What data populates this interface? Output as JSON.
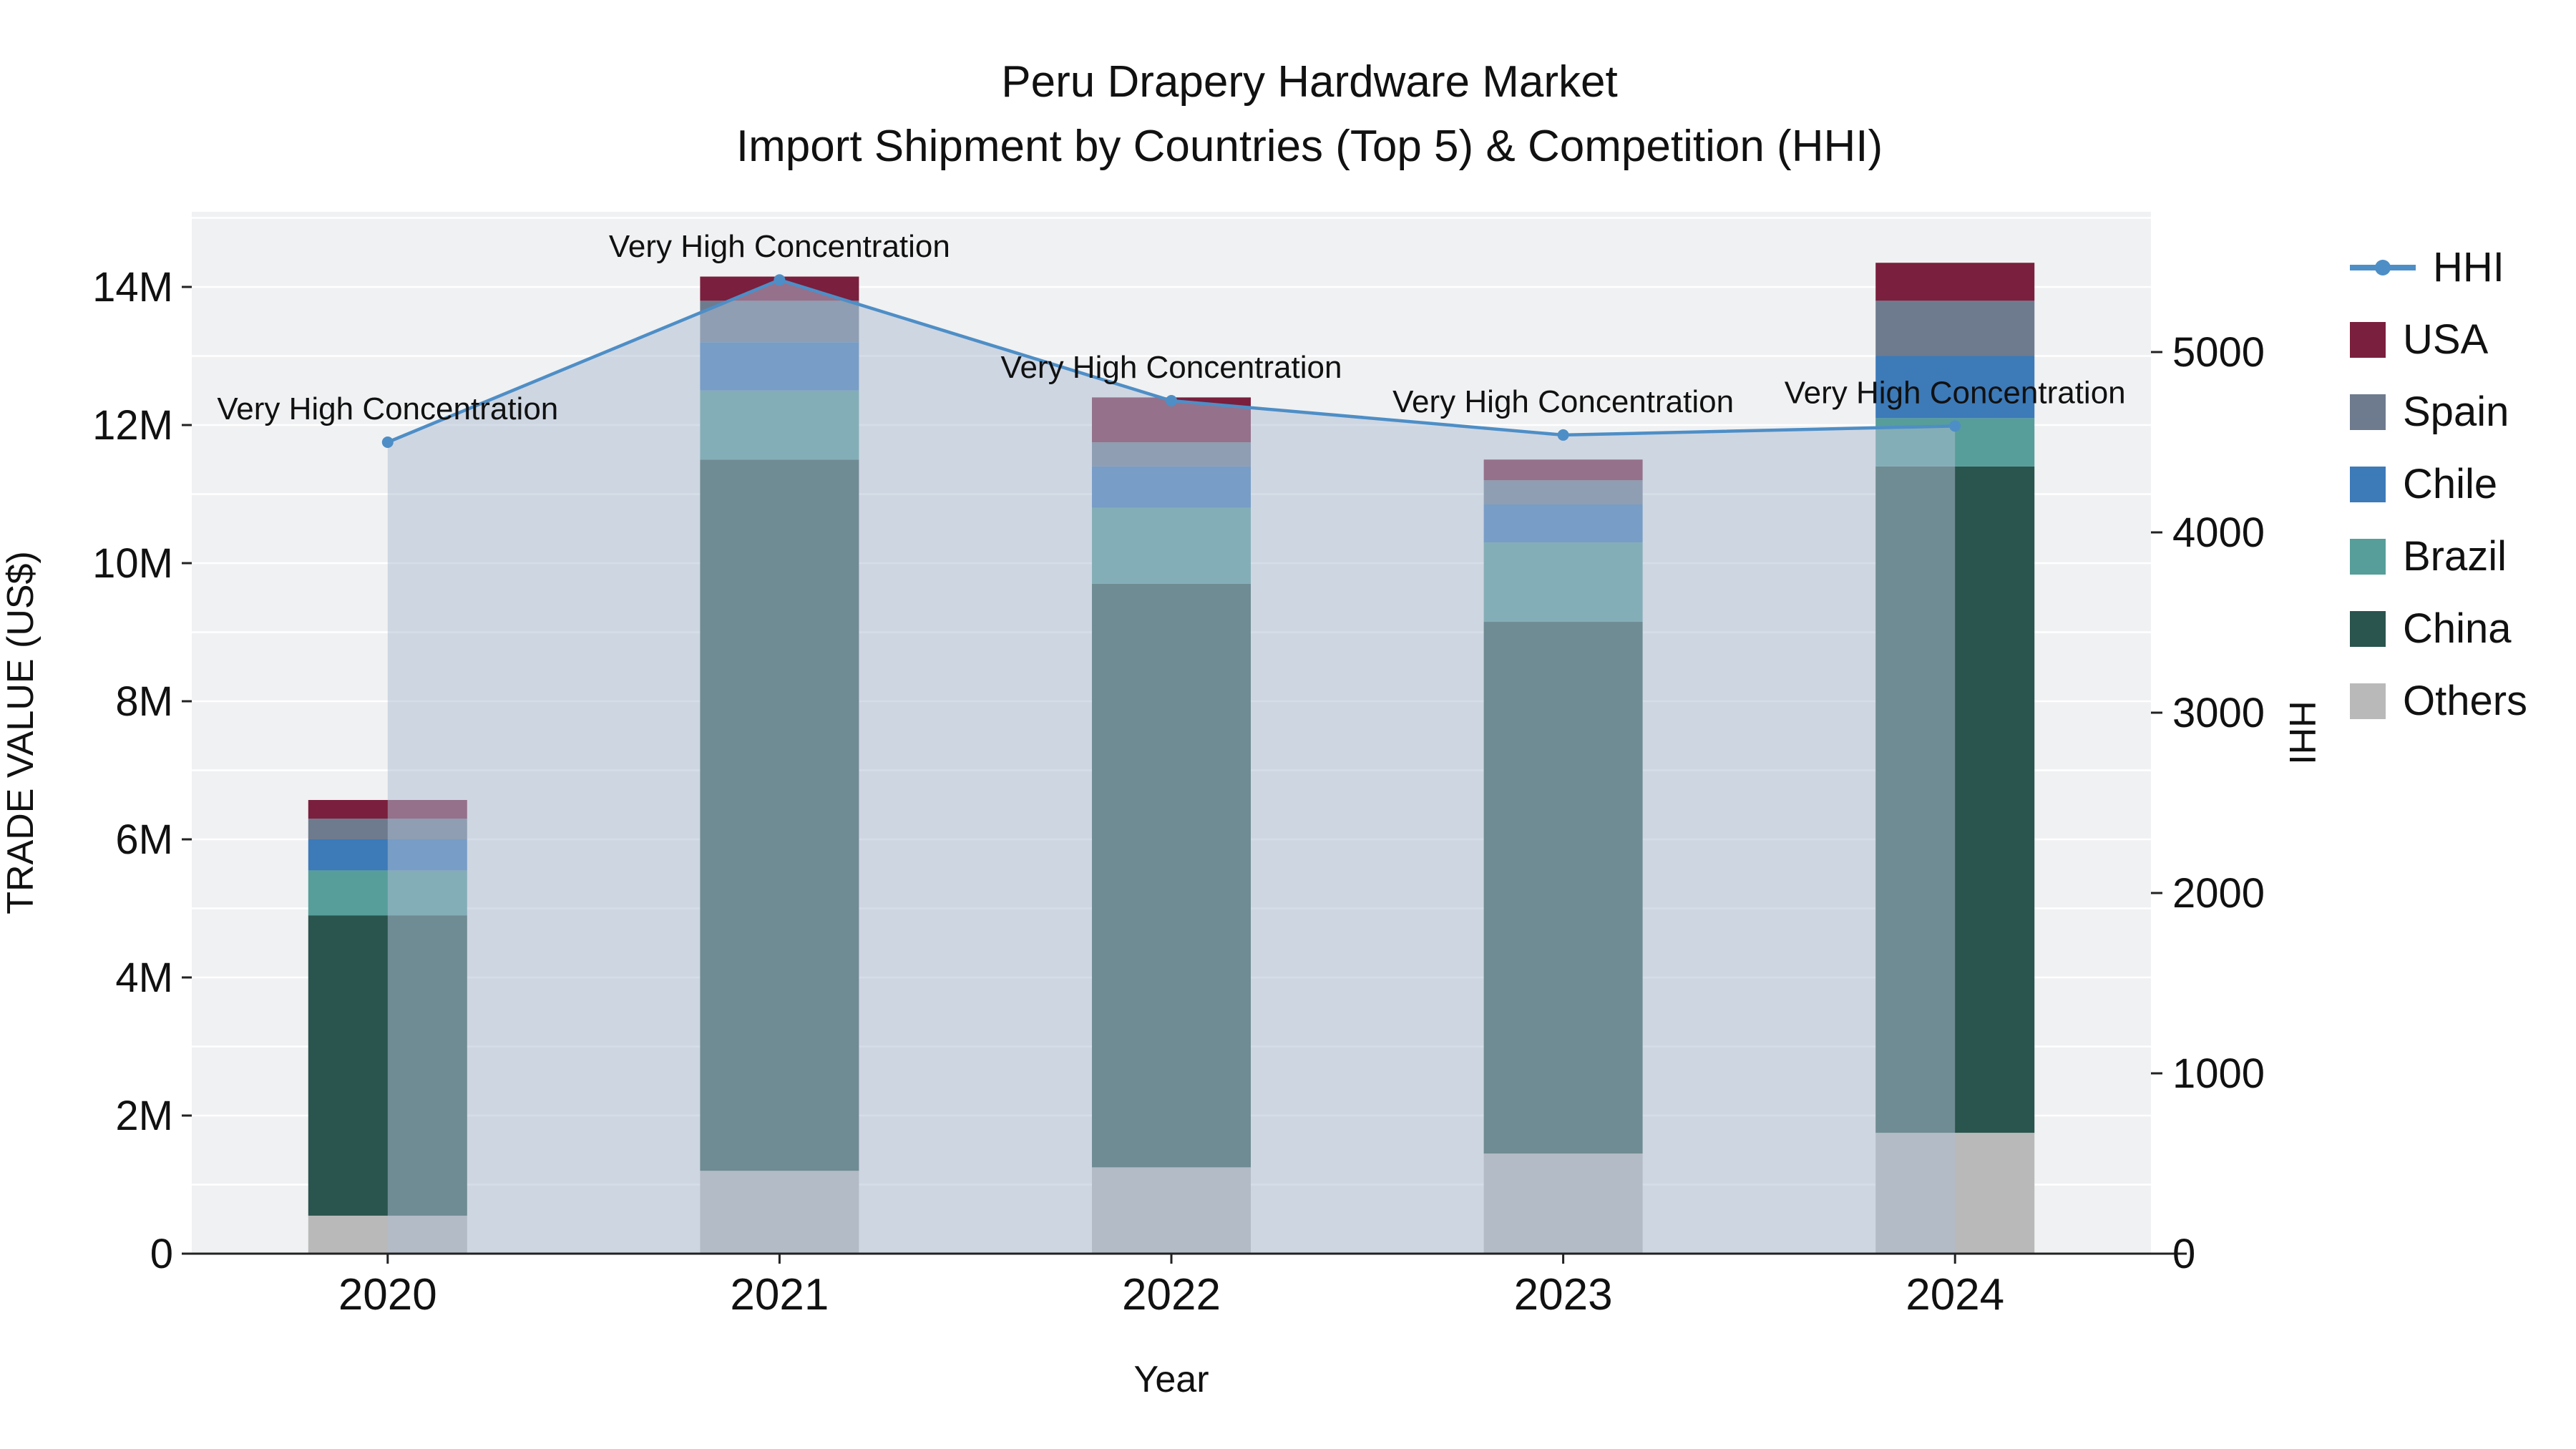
{
  "title": {
    "line1": "Peru Drapery Hardware Market",
    "line2": "Import Shipment by Countries (Top 5) & Competition (HHI)"
  },
  "chart_data": {
    "type": "bar",
    "subtype": "stacked-bar-with-line-overlay",
    "title": "Peru Drapery Hardware Market Import Shipment by Countries (Top 5) & Competition (HHI)",
    "xlabel": "Year",
    "ylabel_left": "TRADE VALUE (US$)",
    "ylabel_right": "HHI",
    "categories": [
      "2020",
      "2021",
      "2022",
      "2023",
      "2024"
    ],
    "values_unit": "million US$",
    "series": [
      {
        "name": "Others",
        "color": "#b9b9b9",
        "values": [
          0.55,
          1.2,
          1.25,
          1.45,
          1.75
        ]
      },
      {
        "name": "China",
        "color": "#2a544e",
        "values": [
          4.35,
          10.3,
          8.45,
          7.7,
          9.65
        ]
      },
      {
        "name": "Brazil",
        "color": "#579e9a",
        "values": [
          0.65,
          1.0,
          1.1,
          1.15,
          0.7
        ]
      },
      {
        "name": "Chile",
        "color": "#3d7ab8",
        "values": [
          0.45,
          0.7,
          0.6,
          0.55,
          0.9
        ]
      },
      {
        "name": "Spain",
        "color": "#6e7b8e",
        "values": [
          0.3,
          0.6,
          0.35,
          0.35,
          0.8
        ]
      },
      {
        "name": "USA",
        "color": "#7a1f3d",
        "values": [
          0.27,
          0.35,
          0.65,
          0.3,
          0.55
        ]
      }
    ],
    "line_series": {
      "name": "HHI",
      "color": "#4e8ec6",
      "fill_color": "#aebed3",
      "values": [
        4500,
        5400,
        4730,
        4540,
        4590
      ]
    },
    "annotations": [
      "Very High Concentration",
      "Very High Concentration",
      "Very High Concentration",
      "Very High Concentration",
      "Very High Concentration"
    ],
    "left_axis": {
      "tick_labels": [
        "0",
        "2M",
        "4M",
        "6M",
        "8M",
        "10M",
        "12M",
        "14M"
      ],
      "tick_values_millions": [
        0,
        2,
        4,
        6,
        8,
        10,
        12,
        14
      ]
    },
    "right_axis": {
      "tick_labels": [
        "0",
        "1000",
        "2000",
        "3000",
        "4000",
        "5000"
      ],
      "tick_values": [
        0,
        1000,
        2000,
        3000,
        4000,
        5000
      ]
    },
    "legend": [
      {
        "label": "HHI",
        "glyph": "line-marker",
        "color": "#4e8ec6"
      },
      {
        "label": "USA",
        "glyph": "square",
        "color": "#7a1f3d"
      },
      {
        "label": "Spain",
        "glyph": "square",
        "color": "#6e7b8e"
      },
      {
        "label": "Chile",
        "glyph": "square",
        "color": "#3d7ab8"
      },
      {
        "label": "Brazil",
        "glyph": "square",
        "color": "#579e9a"
      },
      {
        "label": "China",
        "glyph": "square",
        "color": "#2a544e"
      },
      {
        "label": "Others",
        "glyph": "square",
        "color": "#b9b9b9"
      }
    ],
    "colors": {
      "plot_background": "#f0f1f2",
      "gridline": "#ffffff",
      "axis_line": "#222222",
      "text": "#111111"
    },
    "legend_position": "right"
  }
}
